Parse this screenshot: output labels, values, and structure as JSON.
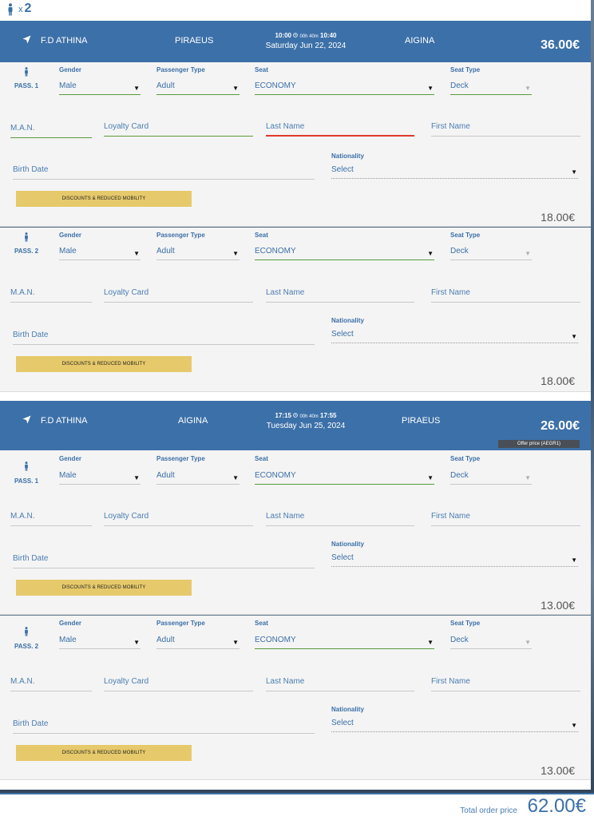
{
  "summary": {
    "pax_x": "x",
    "pax_count": "2"
  },
  "labels": {
    "gender": "Gender",
    "passenger_type": "Passenger Type",
    "seat": "Seat",
    "seat_type": "Seat Type",
    "nationality": "Nationality",
    "man_placeholder": "M.A.N.",
    "loyalty_placeholder": "Loyalty Card",
    "last_name_placeholder": "Last Name",
    "first_name_placeholder": "First Name",
    "birth_date_placeholder": "Birth Date",
    "discount_button": "DISCOUNTS & REDUCED MOBILITY"
  },
  "trips": [
    {
      "vessel": "F.D ATHINA",
      "from": "PIRAEUS",
      "to": "AIGINA",
      "depart": "10:00",
      "duration": "00h 40m",
      "arrive": "10:40",
      "date": "Saturday Jun 22, 2024",
      "price": "36.00€",
      "offer": "",
      "passengers": [
        {
          "label": "PASS. 1",
          "gender": "Male",
          "type": "Adult",
          "seat": "ECONOMY",
          "seat_type": "Deck",
          "nationality": "Select",
          "price": "18.00€"
        },
        {
          "label": "PASS. 2",
          "gender": "Male",
          "type": "Adult",
          "seat": "ECONOMY",
          "seat_type": "Deck",
          "nationality": "Select",
          "price": "18.00€"
        }
      ]
    },
    {
      "vessel": "F.D ATHINA",
      "from": "AIGINA",
      "to": "PIRAEUS",
      "depart": "17:15",
      "duration": "00h 40m",
      "arrive": "17:55",
      "date": "Tuesday Jun 25, 2024",
      "price": "26.00€",
      "offer": "Offer price (AEGR1)",
      "passengers": [
        {
          "label": "PASS. 1",
          "gender": "Male",
          "type": "Adult",
          "seat": "ECONOMY",
          "seat_type": "Deck",
          "nationality": "Select",
          "price": "13.00€"
        },
        {
          "label": "PASS. 2",
          "gender": "Male",
          "type": "Adult",
          "seat": "ECONOMY",
          "seat_type": "Deck",
          "nationality": "Select",
          "price": "13.00€"
        }
      ]
    }
  ],
  "total": {
    "label": "Total order price",
    "value": "62.00€"
  },
  "colors": {
    "header": "#3c70a8",
    "accent": "#3b6fa7",
    "discount": "#e6c96a",
    "error": "#e0392b",
    "valid": "#5a9a3a"
  },
  "icons": {
    "passenger": "person-icon",
    "navigate": "navigation-arrow-icon",
    "clock": "clock-icon"
  }
}
